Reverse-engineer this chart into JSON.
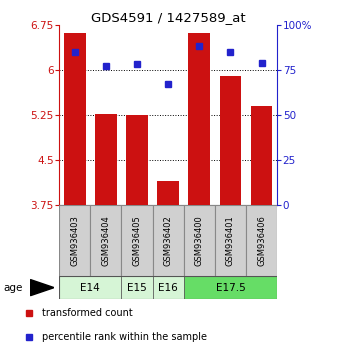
{
  "title": "GDS4591 / 1427589_at",
  "samples": [
    "GSM936403",
    "GSM936404",
    "GSM936405",
    "GSM936402",
    "GSM936400",
    "GSM936401",
    "GSM936406"
  ],
  "red_values": [
    6.62,
    5.27,
    5.25,
    4.15,
    6.62,
    5.9,
    5.4
  ],
  "blue_values": [
    85,
    77,
    78,
    67,
    88,
    85,
    79
  ],
  "age_groups": [
    {
      "label": "E14",
      "span": [
        0,
        1
      ],
      "color": "#d6f5d6"
    },
    {
      "label": "E15",
      "span": [
        2,
        2
      ],
      "color": "#d6f5d6"
    },
    {
      "label": "E16",
      "span": [
        3,
        3
      ],
      "color": "#d6f5d6"
    },
    {
      "label": "E17.5",
      "span": [
        4,
        6
      ],
      "color": "#66dd66"
    }
  ],
  "ylim_left": [
    3.75,
    6.75
  ],
  "ylim_right": [
    0,
    100
  ],
  "yticks_left": [
    3.75,
    4.5,
    5.25,
    6.0,
    6.75
  ],
  "yticks_right": [
    0,
    25,
    50,
    75,
    100
  ],
  "ytick_labels_left": [
    "3.75",
    "4.5",
    "5.25",
    "6",
    "6.75"
  ],
  "ytick_labels_right": [
    "0",
    "25",
    "50",
    "75",
    "100%"
  ],
  "bar_color": "#cc1111",
  "dot_color": "#2222cc",
  "bar_width": 0.7,
  "legend_red": "transformed count",
  "legend_blue": "percentile rank within the sample"
}
